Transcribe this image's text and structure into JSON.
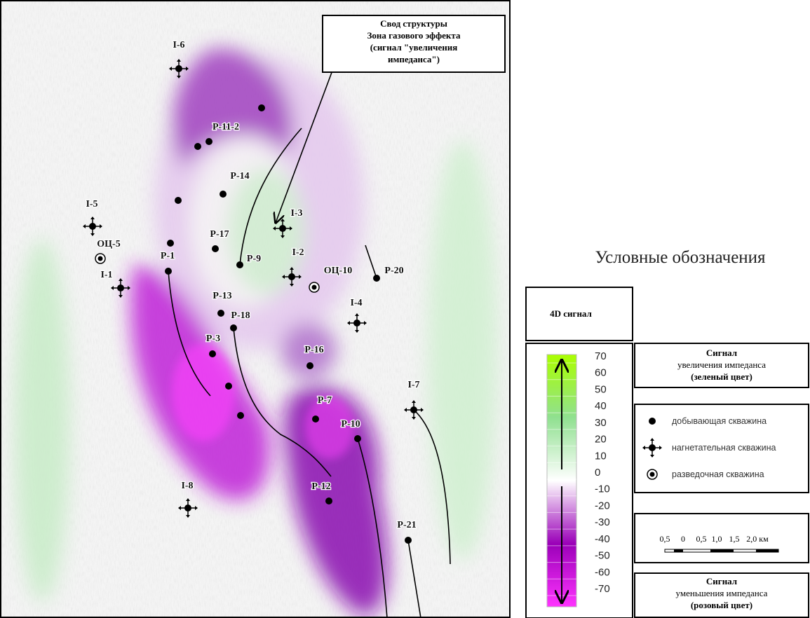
{
  "callout": {
    "lines": [
      "Свод структуры",
      "Зона газового эффекта",
      "(сигнал \"увеличения",
      "импеданса\")"
    ]
  },
  "wells": [
    {
      "label": "I-6",
      "kind": "injection"
    },
    {
      "label": "Р-11-2",
      "kind": "production"
    },
    {
      "label": "Р-14",
      "kind": "production"
    },
    {
      "label": "I-5",
      "kind": "injection"
    },
    {
      "label": "I-3",
      "kind": "injection"
    },
    {
      "label": "Р-17",
      "kind": "production"
    },
    {
      "label": "ОЦ-5",
      "kind": "exploration"
    },
    {
      "label": "Р-1",
      "kind": "production"
    },
    {
      "label": "Р-9",
      "kind": "production"
    },
    {
      "label": "I-2",
      "kind": "injection"
    },
    {
      "label": "ОЦ-10",
      "kind": "exploration"
    },
    {
      "label": "Р-20",
      "kind": "production"
    },
    {
      "label": "I-1",
      "kind": "injection"
    },
    {
      "label": "Р-13",
      "kind": "production"
    },
    {
      "label": "Р-18",
      "kind": "production"
    },
    {
      "label": "I-4",
      "kind": "injection"
    },
    {
      "label": "Р-3",
      "kind": "production"
    },
    {
      "label": "Р-16",
      "kind": "production"
    },
    {
      "label": "I-7",
      "kind": "injection"
    },
    {
      "label": "Р-7",
      "kind": "production"
    },
    {
      "label": "Р-10",
      "kind": "production"
    },
    {
      "label": "I-8",
      "kind": "injection"
    },
    {
      "label": "Р-12",
      "kind": "production"
    },
    {
      "label": "Р-21",
      "kind": "production"
    }
  ],
  "legend": {
    "title": "Условные обозначения",
    "signal_box": "4D сигнал",
    "colorbar": {
      "range": [
        -70,
        70
      ],
      "ticks": [
        70,
        60,
        50,
        40,
        30,
        20,
        10,
        0,
        -10,
        -20,
        -30,
        -40,
        -50,
        -60,
        -70
      ],
      "colors": [
        "#ff33ff",
        "#9a00b8",
        "#ffffff",
        "#90e090",
        "#aaff00"
      ]
    },
    "increase": [
      "Сигнал",
      "увеличения импеданса",
      "(зеленый цвет)"
    ],
    "decrease": [
      "Сигнал",
      "уменьшения импеданса",
      "(розовый цвет)"
    ],
    "symbols": [
      {
        "kind": "production",
        "label": "добывающая скважина"
      },
      {
        "kind": "injection",
        "label": "нагнетательная скважина"
      },
      {
        "kind": "exploration",
        "label": "разведочная скважина"
      }
    ],
    "scale_labels": [
      "0,5",
      "0",
      "0,5",
      "1,0",
      "1,5",
      "2,0 км"
    ]
  }
}
